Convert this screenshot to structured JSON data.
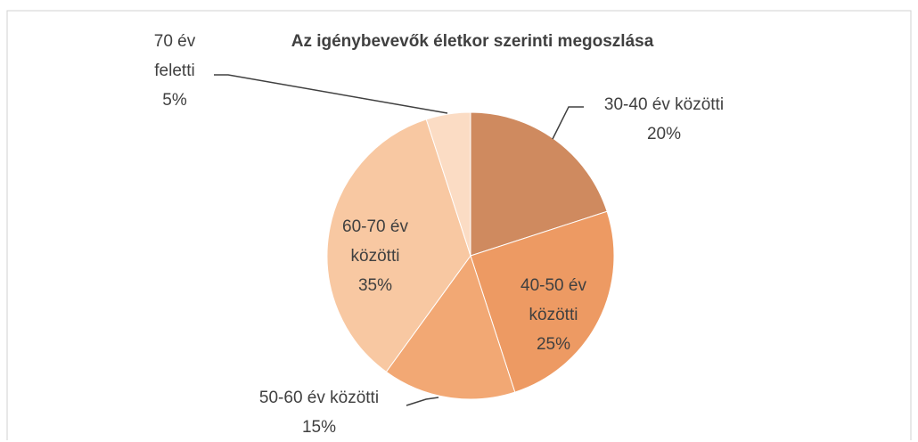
{
  "chart_data": {
    "type": "pie",
    "title": "Az igénybevevők életkor szerinti megoszlása",
    "categories": [
      "30-40 év közötti",
      "40-50 év közötti",
      "50-60 év közötti",
      "60-70 év közötti",
      "70 év feletti"
    ],
    "values": [
      20,
      25,
      15,
      35,
      5
    ],
    "value_labels": [
      "20%",
      "25%",
      "15%",
      "35%",
      "5%"
    ],
    "colors": [
      "#cf8a5f",
      "#ed9a63",
      "#f2a874",
      "#f8c8a2",
      "#fbdcc4"
    ]
  }
}
